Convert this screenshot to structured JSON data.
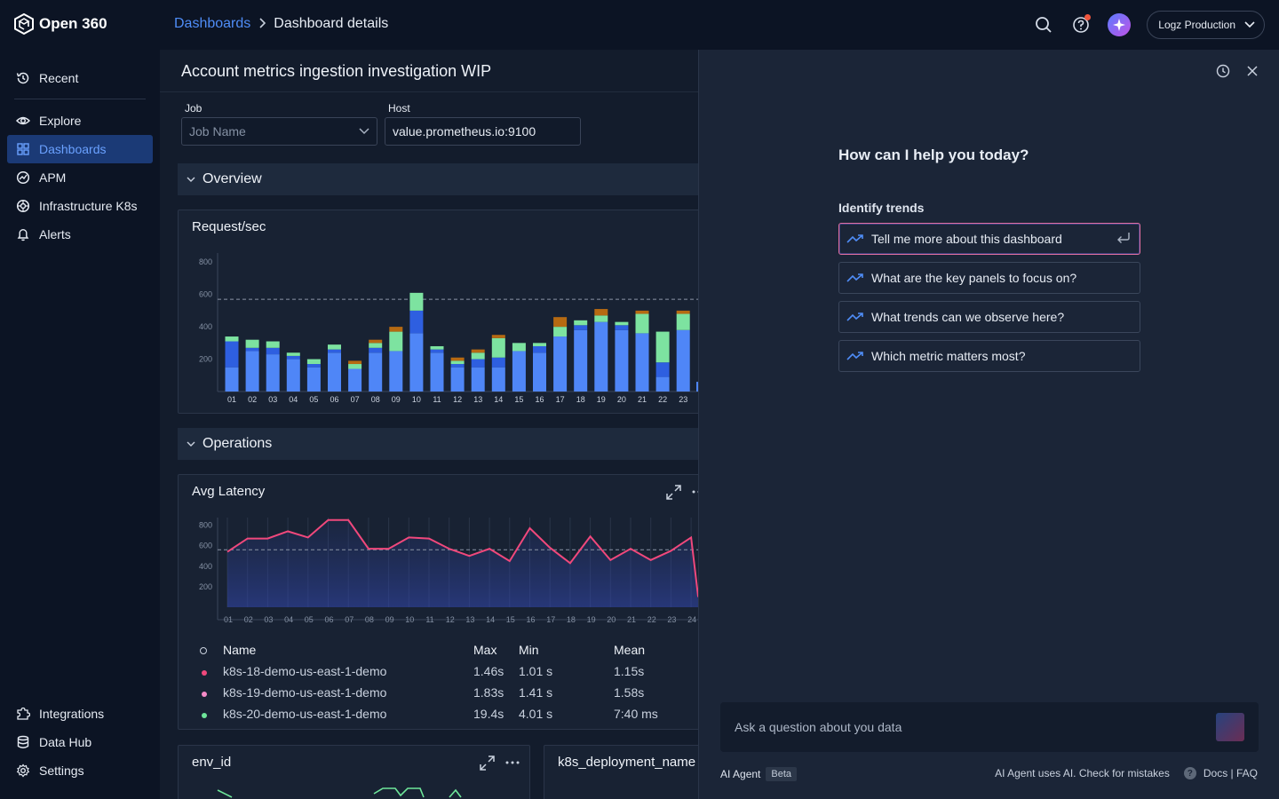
{
  "brand": {
    "name": "Open 360"
  },
  "breadcrumb": {
    "parent": "Dashboards",
    "current": "Dashboard details"
  },
  "account": {
    "selected": "Logz Production"
  },
  "sidebar": {
    "items": [
      {
        "label": "Recent",
        "icon": "history-icon"
      },
      {
        "label": "Explore",
        "icon": "eye-icon"
      },
      {
        "label": "Dashboards",
        "icon": "grid-icon",
        "active": true
      },
      {
        "label": "APM",
        "icon": "apm-icon"
      },
      {
        "label": "Infrastructure K8s",
        "icon": "k8s-icon"
      },
      {
        "label": "Alerts",
        "icon": "bell-icon"
      }
    ],
    "bottom": [
      {
        "label": "Integrations",
        "icon": "puzzle-icon"
      },
      {
        "label": "Data Hub",
        "icon": "database-icon"
      },
      {
        "label": "Settings",
        "icon": "gear-icon"
      }
    ]
  },
  "dashboard": {
    "title": "Account metrics ingestion investigation WIP",
    "variables": {
      "job": {
        "label": "Job",
        "placeholder": "Job Name"
      },
      "host": {
        "label": "Host",
        "value": "value.prometheus.io:9100"
      }
    },
    "rows": {
      "overview": "Overview",
      "operations": "Operations"
    },
    "panels": {
      "requests": "Request/sec",
      "latency": "Avg Latency",
      "env": "env_id",
      "k8s": "k8s_deployment_name"
    },
    "legend": {
      "headers": {
        "name": "Name",
        "max": "Max",
        "min": "Min",
        "mean": "Mean"
      },
      "rows": [
        {
          "name": "k8s-18-demo-us-east-1-demo",
          "max": "1.46s",
          "min": "1.01 s",
          "mean": "1.15s",
          "color": "#f0487c"
        },
        {
          "name": "k8s-19-demo-us-east-1-demo",
          "max": "1.83s",
          "min": "1.41 s",
          "mean": "1.58s",
          "color": "#f58bc8"
        },
        {
          "name": "k8s-20-demo-us-east-1-demo",
          "max": "19.4s",
          "min": "4.01 s",
          "mean": "7:40 ms",
          "color": "#6ee69a"
        }
      ]
    }
  },
  "chart_data": [
    {
      "type": "bar",
      "title": "Request/sec",
      "categories": [
        "01",
        "02",
        "03",
        "04",
        "05",
        "06",
        "07",
        "08",
        "09",
        "10",
        "11",
        "12",
        "13",
        "14",
        "15",
        "16",
        "17",
        "18",
        "19",
        "20",
        "21",
        "22",
        "23"
      ],
      "ylim": [
        0,
        900
      ],
      "yticks": [
        200,
        400,
        600,
        800
      ],
      "threshold": 570,
      "series": [
        {
          "color": "#4f86f7",
          "values": [
            150,
            250,
            230,
            200,
            150,
            240,
            140,
            240,
            250,
            360,
            240,
            150,
            150,
            150,
            250,
            240,
            340,
            380,
            430,
            380,
            360,
            90,
            380
          ]
        },
        {
          "color": "#2e5fe0",
          "values": [
            160,
            20,
            40,
            20,
            20,
            20,
            0,
            30,
            0,
            140,
            20,
            20,
            50,
            60,
            0,
            40,
            0,
            30,
            0,
            30,
            0,
            90,
            0
          ]
        },
        {
          "color": "#7de3a0",
          "values": [
            30,
            50,
            40,
            20,
            30,
            30,
            30,
            30,
            120,
            110,
            20,
            20,
            40,
            120,
            50,
            20,
            60,
            30,
            40,
            20,
            120,
            190,
            100
          ]
        },
        {
          "color": "#b66a12",
          "values": [
            0,
            0,
            0,
            0,
            0,
            0,
            20,
            20,
            30,
            0,
            0,
            20,
            20,
            20,
            0,
            0,
            60,
            0,
            40,
            0,
            20,
            0,
            20
          ]
        }
      ]
    },
    {
      "type": "line",
      "title": "Avg Latency",
      "x": [
        "01",
        "02",
        "03",
        "04",
        "05",
        "06",
        "07",
        "08",
        "09",
        "10",
        "11",
        "12",
        "13",
        "14",
        "15",
        "16",
        "17",
        "18",
        "19",
        "20",
        "21",
        "22",
        "23",
        "24"
      ],
      "ylim": [
        0,
        900
      ],
      "yticks": [
        200,
        400,
        600,
        800
      ],
      "threshold": 560,
      "series": [
        {
          "color": "#f0487c",
          "values": [
            540,
            670,
            670,
            740,
            680,
            850,
            850,
            570,
            570,
            680,
            670,
            570,
            500,
            570,
            450,
            770,
            580,
            430,
            690,
            460,
            570,
            460,
            550,
            680
          ]
        }
      ]
    }
  ],
  "ai": {
    "heading": "How can I help you today?",
    "section": "Identify trends",
    "suggestions": [
      "Tell me more about this dashboard",
      "What are the key panels to focus on?",
      "What trends can we observe here?",
      "Which metric matters most?"
    ],
    "input_placeholder": "Ask a question about you data",
    "agent_label": "AI Agent",
    "beta": "Beta",
    "disclaimer": "AI Agent uses AI. Check for mistakes",
    "docs": "Docs | FAQ"
  }
}
